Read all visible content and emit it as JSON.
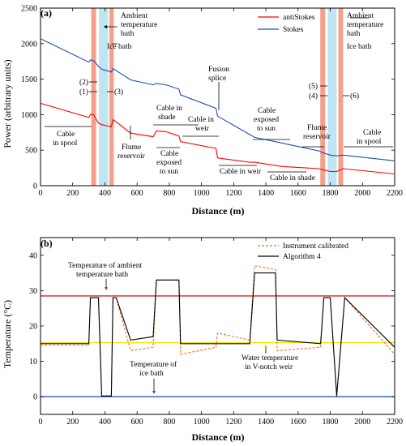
{
  "chart_data": [
    {
      "panel": "(a)",
      "type": "line",
      "xlabel": "Distance (m)",
      "ylabel": "Power (arbitrary units)",
      "xlim": [
        0,
        2200
      ],
      "ylim": [
        0,
        2500
      ],
      "xticks": [
        "0",
        "200",
        "400",
        "600",
        "800",
        "1000",
        "1200",
        "1400",
        "1600",
        "1800",
        "2000",
        "2200"
      ],
      "yticks": [
        "0",
        "500",
        "1000",
        "1500",
        "2000",
        "2500"
      ],
      "legend_position": "top-right",
      "series": [
        {
          "name": "antiStokes",
          "color": "#ff0000",
          "x": [
            0,
            300,
            310,
            330,
            360,
            380,
            440,
            450,
            470,
            560,
            700,
            720,
            780,
            860,
            870,
            1090,
            1100,
            1300,
            1330,
            1500,
            1730,
            1760,
            1800,
            1840,
            1880,
            2200
          ],
          "y": [
            1160,
            960,
            1000,
            1000,
            880,
            860,
            830,
            930,
            900,
            740,
            690,
            770,
            760,
            700,
            620,
            525,
            390,
            330,
            330,
            270,
            240,
            220,
            200,
            200,
            240,
            165
          ]
        },
        {
          "name": "Stokes",
          "color": "#1f4ea8",
          "x": [
            0,
            300,
            310,
            330,
            360,
            380,
            440,
            450,
            470,
            560,
            700,
            720,
            780,
            860,
            870,
            1090,
            1100,
            1300,
            1330,
            1500,
            1730,
            1760,
            1800,
            1840,
            1880,
            2200
          ],
          "y": [
            2070,
            1740,
            1770,
            1760,
            1680,
            1640,
            1600,
            1650,
            1620,
            1490,
            1420,
            1440,
            1420,
            1360,
            1280,
            1090,
            980,
            720,
            680,
            600,
            490,
            460,
            430,
            420,
            430,
            350
          ]
        }
      ],
      "bands": [
        {
          "type": "Ambient temperature bath",
          "color": "#f4a08a",
          "x": [
            315,
            345
          ]
        },
        {
          "type": "Ice bath",
          "color": "#bfe4f2",
          "x": [
            363,
            420
          ]
        },
        {
          "type": "Ambient temperature bath",
          "color": "#f4a08a",
          "x": [
            428,
            455
          ]
        },
        {
          "type": "Ambient temperature bath",
          "color": "#f4a08a",
          "x": [
            1738,
            1768
          ]
        },
        {
          "type": "Ice bath",
          "color": "#bfe4f2",
          "x": [
            1785,
            1840
          ]
        },
        {
          "type": "Ambient temperature bath",
          "color": "#f4a08a",
          "x": [
            1850,
            1880
          ]
        }
      ],
      "annotations": {
        "ambient_bath_left": "Ambient temperature bath",
        "ice_bath_left": "Ice bath",
        "ambient_bath_right": "Ambient temperature bath",
        "ice_bath_right": "Ice bath",
        "p1": "(1)",
        "p2": "(2)",
        "p3": "(3)",
        "p4": "(4)",
        "p5": "(5)",
        "p6": "(6)",
        "fusion_splice": "Fusion splice",
        "cable_in_spool_left": "Cable in spool",
        "cable_in_shade_1": "Cable in shade",
        "flume_reservoir_1": "Flume reservoir",
        "cable_exposed_1": "Cable exposed to sun",
        "cable_in_weir_1": "Cable in weir",
        "cable_in_weir_2": "Cable in weir",
        "cable_exposed_2": "Cable exposed to sun",
        "cable_in_shade_2": "Cable in shade",
        "flume_reservoir_2": "Flume reservoir",
        "cable_in_spool_right": "Cable in spool"
      }
    },
    {
      "panel": "(b)",
      "type": "line",
      "xlabel": "Distance (m)",
      "ylabel": "Temperature (°C)",
      "xlim": [
        0,
        2200
      ],
      "ylim": [
        -5,
        45
      ],
      "xticks": [
        "0",
        "200",
        "400",
        "600",
        "800",
        "1000",
        "1200",
        "1400",
        "1600",
        "1800",
        "2000",
        "2200"
      ],
      "yticks": [
        "0",
        "10",
        "20",
        "30",
        "40"
      ],
      "legend_position": "top-right",
      "series": [
        {
          "name": "Instrument calibrated",
          "color": "#f07020",
          "dash": true,
          "x": [
            0,
            300,
            310,
            360,
            380,
            440,
            450,
            470,
            560,
            700,
            720,
            860,
            870,
            1090,
            1100,
            1300,
            1330,
            1460,
            1470,
            1740,
            1760,
            1800,
            1840,
            1890,
            2200
          ],
          "y": [
            14.5,
            14.5,
            28,
            28,
            0.2,
            0.2,
            28,
            28,
            13,
            14,
            33,
            33,
            12,
            14,
            18,
            16,
            37,
            36,
            13,
            14,
            28,
            28,
            0.2,
            28,
            12
          ]
        },
        {
          "name": "Algorithm 4",
          "color": "#000000",
          "x": [
            0,
            300,
            310,
            360,
            380,
            440,
            450,
            470,
            560,
            700,
            720,
            860,
            870,
            1090,
            1100,
            1300,
            1330,
            1460,
            1470,
            1740,
            1760,
            1800,
            1840,
            1890,
            2200
          ],
          "y": [
            15,
            15,
            28,
            28,
            0.2,
            0.2,
            28,
            28,
            16,
            17,
            33,
            33,
            15,
            15,
            15,
            15,
            35,
            35,
            16,
            15,
            28,
            28,
            0.2,
            28,
            14
          ]
        }
      ],
      "reference_lines": [
        {
          "label": "Temperature of ambient temperature bath",
          "color": "#dd2222",
          "y": 28.5
        },
        {
          "label": "Water temperature in V-notch weir",
          "color": "#f4e400",
          "y": 15.3
        },
        {
          "label": "Temperature of ice bath",
          "color": "#2255cc",
          "y": 0
        }
      ],
      "annotations": {
        "ambient_bath_temp": "Temperature of ambient temperature bath",
        "weir_temp": "Water temperature in V-notch weir",
        "ice_bath_temp": "Temperature of ice bath"
      }
    }
  ]
}
